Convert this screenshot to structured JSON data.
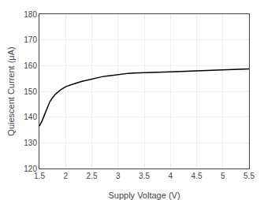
{
  "chart_data": {
    "type": "line",
    "xlabel": "Supply Voltage (V)",
    "ylabel": "Quiescent Current (μA)",
    "x": [
      1.5,
      1.55,
      1.6,
      1.65,
      1.7,
      1.75,
      1.8,
      1.9,
      2.0,
      2.1,
      2.2,
      2.3,
      2.4,
      2.5,
      2.6,
      2.7,
      2.8,
      2.9,
      3.0,
      3.1,
      3.2,
      3.3,
      3.5,
      3.8,
      4.0,
      4.2,
      4.5,
      4.8,
      5.0,
      5.2,
      5.5
    ],
    "values": [
      136.5,
      138.5,
      141.0,
      143.5,
      146.0,
      147.5,
      148.8,
      150.5,
      151.8,
      152.5,
      153.2,
      153.8,
      154.3,
      154.8,
      155.3,
      155.7,
      156.0,
      156.3,
      156.6,
      156.8,
      157.0,
      157.1,
      157.3,
      157.5,
      157.6,
      157.7,
      157.9,
      158.1,
      158.2,
      158.3,
      158.7
    ],
    "color": "#000000",
    "xlim": [
      1.5,
      5.5
    ],
    "ylim": [
      120,
      180
    ],
    "xticks": [
      1.5,
      2,
      2.5,
      3,
      3.5,
      4,
      4.5,
      5,
      5.5
    ],
    "yticks": [
      120,
      130,
      140,
      150,
      160,
      170,
      180
    ],
    "grid": true
  }
}
